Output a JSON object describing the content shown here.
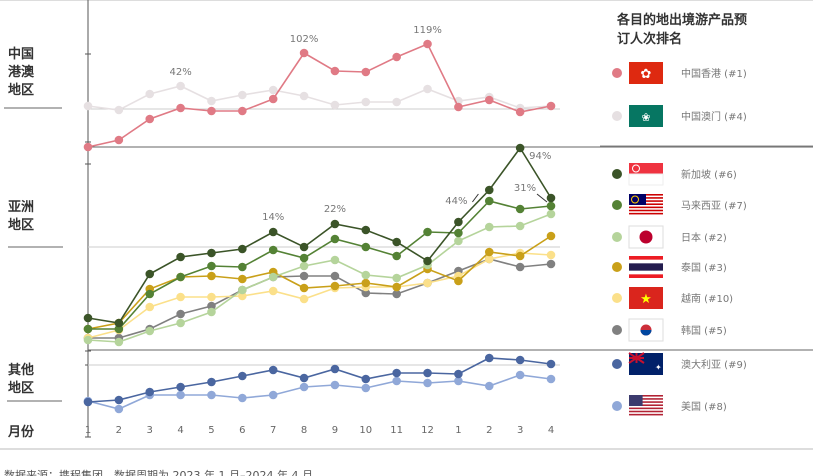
{
  "chart_data": {
    "type": "line",
    "title": "各目的地出境游产品预订人次排名",
    "xlabel": "月份",
    "categories": [
      "1",
      "2",
      "3",
      "4",
      "5",
      "6",
      "7",
      "8",
      "9",
      "10",
      "11",
      "12",
      "1",
      "2",
      "3",
      "4"
    ],
    "grid": false,
    "legend_placement": "right",
    "panels": [
      {
        "label": "中国港澳地区",
        "ylim": [
          0,
          147
        ],
        "reference": 38,
        "series": [
          {
            "name": "中国香港 (#1)",
            "color": "#e07a85",
            "flag": "hong-kong-flag",
            "values": [
              0,
              7,
              28,
              39,
              36,
              36,
              48,
              94,
              76,
              75,
              90,
              103,
              40,
              47,
              35,
              41
            ]
          },
          {
            "name": "中国澳门 (#4)",
            "color": "#e6e0e2",
            "flag": "macau-flag",
            "values": [
              41,
              37,
              53,
              61,
              46,
              52,
              57,
              51,
              42,
              45,
              45,
              58,
              46,
              50,
              39,
              41
            ]
          }
        ],
        "annotations": [
          {
            "text": "42%",
            "series": 1,
            "index": 3
          },
          {
            "text": "102%",
            "series": 0,
            "index": 7
          },
          {
            "text": "119%",
            "series": 0,
            "index": 11
          }
        ]
      },
      {
        "label": "亚洲地区",
        "ylim": [
          0,
          203
        ],
        "reference": 103,
        "series": [
          {
            "name": "新加坡 (#6)",
            "color": "#3b5428",
            "flag": "singapore-flag",
            "values": [
              32,
              27,
              76,
              93,
              97,
              101,
              118,
              103,
              126,
              120,
              108,
              89,
              128,
              160,
              202,
              152
            ]
          },
          {
            "name": "马来西亚 (#7)",
            "color": "#548235",
            "flag": "malaysia-flag",
            "values": [
              21,
              21,
              56,
              73,
              84,
              83,
              100,
              92,
              111,
              103,
              94,
              118,
              117,
              149,
              141,
              144
            ]
          },
          {
            "name": "日本 (#2)",
            "color": "#b5d49b",
            "flag": "japan-flag",
            "values": [
              10,
              8,
              19,
              27,
              38,
              60,
              73,
              84,
              90,
              75,
              72,
              85,
              109,
              123,
              124,
              136
            ]
          },
          {
            "name": "泰国 (#3)",
            "color": "#c9a019",
            "flag": "thailand-flag",
            "values": [
              21,
              27,
              61,
              73,
              74,
              71,
              78,
              62,
              64,
              67,
              63,
              81,
              69,
              98,
              94,
              114
            ]
          },
          {
            "name": "越南 (#10)",
            "color": "#fbe08a",
            "flag": "vietnam-flag",
            "values": [
              12,
              20,
              43,
              53,
              53,
              54,
              59,
              51,
              62,
              63,
              63,
              67,
              74,
              91,
              97,
              95
            ]
          },
          {
            "name": "韩国 (#5)",
            "color": "#808080",
            "flag": "korea-flag",
            "values": [
              12,
              12,
              21,
              36,
              44,
              60,
              73,
              74,
              74,
              57,
              56,
              67,
              79,
              91,
              83,
              86
            ]
          }
        ],
        "annotations": [
          {
            "text": "14%",
            "series": 0,
            "index": 6
          },
          {
            "text": "22%",
            "series": 0,
            "index": 8
          },
          {
            "text": "44%",
            "series": 0,
            "index": 12
          },
          {
            "text": "31%",
            "series": 1,
            "index": 15
          },
          {
            "text": "94%",
            "series": 0,
            "index": 14
          }
        ]
      },
      {
        "label": "其他地区",
        "ylim": [
          0,
          70
        ],
        "reference": 55,
        "series": [
          {
            "name": "澳大利亚 (#9)",
            "color": "#4a66a0",
            "flag": "australia-flag",
            "values": [
              18,
              20,
              28,
              33,
              38,
              44,
              50,
              42,
              51,
              41,
              47,
              47,
              46,
              62,
              60,
              56
            ]
          },
          {
            "name": "美国 (#8)",
            "color": "#90a8d8",
            "flag": "usa-flag",
            "values": [
              19,
              11,
              25,
              25,
              25,
              22,
              25,
              33,
              35,
              32,
              39,
              37,
              39,
              34,
              45,
              41
            ]
          }
        ]
      }
    ]
  },
  "footer": {
    "source": "数据来源：携程集团，数据周期为 2023 年 1 月–2024 年 4 月"
  }
}
